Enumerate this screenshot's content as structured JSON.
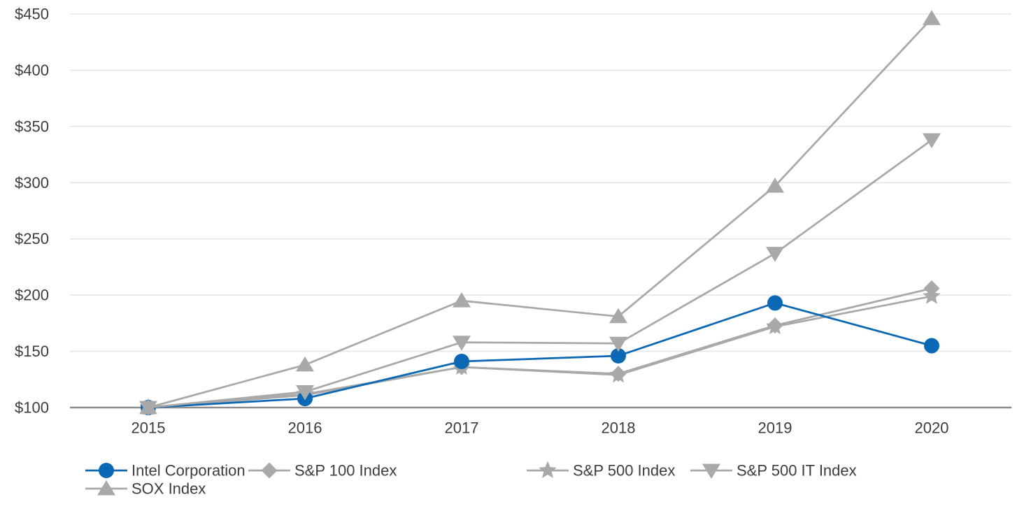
{
  "chart_data": {
    "type": "line",
    "title": "",
    "xlabel": "",
    "ylabel": "",
    "categories": [
      "2015",
      "2016",
      "2017",
      "2018",
      "2019",
      "2020"
    ],
    "y_ticks": [
      100,
      150,
      200,
      250,
      300,
      350,
      400,
      450
    ],
    "y_tick_labels": [
      "$100",
      "$150",
      "$200",
      "$250",
      "$300",
      "$350",
      "$400",
      "$450"
    ],
    "ylim": [
      100,
      455
    ],
    "grid": "horizontal-light",
    "legend_position": "bottom",
    "colors": {
      "intel_blue": "#0b68b4",
      "index_gray": "#a9a9a9",
      "gridline": "#e6e6e6",
      "axis_line": "#8c8c8c",
      "text": "#3d3d3d"
    },
    "series": [
      {
        "name": "Intel Corporation",
        "marker": "circle",
        "color": "#0b68b4",
        "values": [
          100,
          108,
          141,
          146,
          193,
          155
        ]
      },
      {
        "name": "S&P 100 Index",
        "marker": "diamond",
        "color": "#a9a9a9",
        "values": [
          100,
          111,
          136,
          130,
          173,
          206
        ]
      },
      {
        "name": "S&P 500 Index",
        "marker": "star",
        "color": "#a9a9a9",
        "values": [
          100,
          112,
          136,
          129,
          172,
          199
        ]
      },
      {
        "name": "S&P 500 IT Index",
        "marker": "triangle-down",
        "color": "#a9a9a9",
        "values": [
          100,
          114,
          158,
          157,
          237,
          338
        ]
      },
      {
        "name": "SOX Index",
        "marker": "triangle-up",
        "color": "#a9a9a9",
        "values": [
          100,
          138,
          195,
          181,
          297,
          446
        ]
      }
    ]
  }
}
